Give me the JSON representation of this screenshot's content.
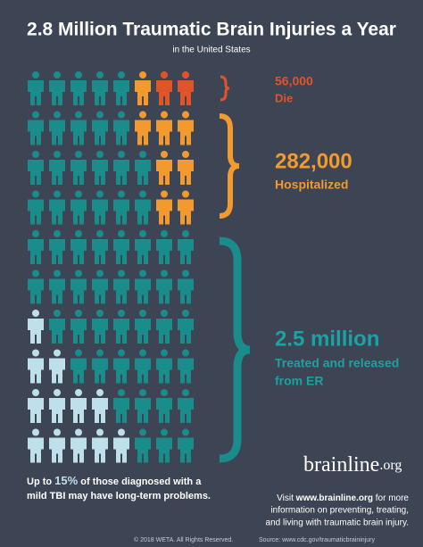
{
  "header": {
    "title": "2.8 Million Traumatic Brain Injuries a Year",
    "subtitle": "in the United States"
  },
  "groups": [
    {
      "number": "56,000",
      "label": [
        "Die"
      ]
    },
    {
      "number": "282,000",
      "label": [
        "Hospitalized"
      ]
    },
    {
      "number": "2.5 million",
      "label": [
        "Treated and released",
        "from ER"
      ]
    }
  ],
  "note": {
    "before": "Up to ",
    "highlight": "15%",
    "after": " of those diagnosed with a",
    "line2": "mild TBI may have long-term problems."
  },
  "logo": {
    "main": "brainline",
    "suffix": ".org"
  },
  "visit": {
    "before": "Visit ",
    "link": "www.brainline.org",
    "after": " for more",
    "line2": "information on preventing, treating,",
    "line3": "and living with traumatic brain injury."
  },
  "footer": {
    "copyright": "© 2018 WETA. All Rights Reserved.",
    "source": "Source: www.cdc.gov/traumaticbraininjury"
  }
}
